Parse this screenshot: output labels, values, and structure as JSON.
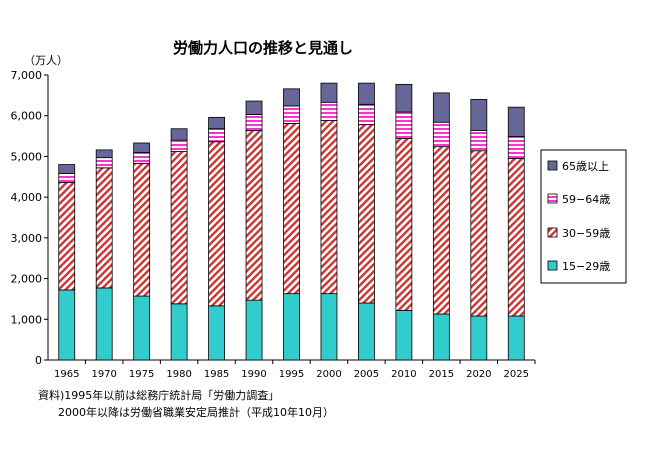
{
  "chart_data": {
    "type": "bar",
    "stacked": true,
    "title": "労働力人口の推移と見通し",
    "unit_label": "（万人）",
    "categories": [
      "1965",
      "1970",
      "1975",
      "1980",
      "1985",
      "1990",
      "1995",
      "2000",
      "2005",
      "2010",
      "2015",
      "2020",
      "2025"
    ],
    "ylim": [
      0,
      7000
    ],
    "yticks": [
      0,
      1000,
      2000,
      3000,
      4000,
      5000,
      6000,
      7000
    ],
    "ytick_labels": [
      "0",
      "1,000",
      "2,000",
      "3,000",
      "4,000",
      "5,000",
      "6,000",
      "7,000"
    ],
    "grid": false,
    "legend_position": "right",
    "series": [
      {
        "name": "15−29歳",
        "color": "#33cccc",
        "values": [
          1720,
          1770,
          1570,
          1380,
          1330,
          1470,
          1630,
          1630,
          1400,
          1220,
          1130,
          1080,
          1080
        ]
      },
      {
        "name": "30−59歳",
        "color": "#cc3333",
        "values": [
          2640,
          2950,
          3260,
          3740,
          4030,
          4170,
          4180,
          4250,
          4380,
          4220,
          4110,
          4060,
          3870
        ]
      },
      {
        "name": "59−64歳",
        "color": "#ff33cc",
        "values": [
          220,
          250,
          270,
          280,
          320,
          390,
          430,
          450,
          500,
          650,
          600,
          500,
          540
        ]
      },
      {
        "name": "65歳以上",
        "color": "#666699",
        "values": [
          220,
          190,
          230,
          280,
          280,
          330,
          420,
          470,
          520,
          680,
          720,
          760,
          720
        ]
      }
    ]
  },
  "notes": {
    "line1": "資料)1995年以前は総務庁統計局「労働力調査」",
    "line2": "2000年以降は労働省職業安定局推計（平成10年10月）"
  }
}
